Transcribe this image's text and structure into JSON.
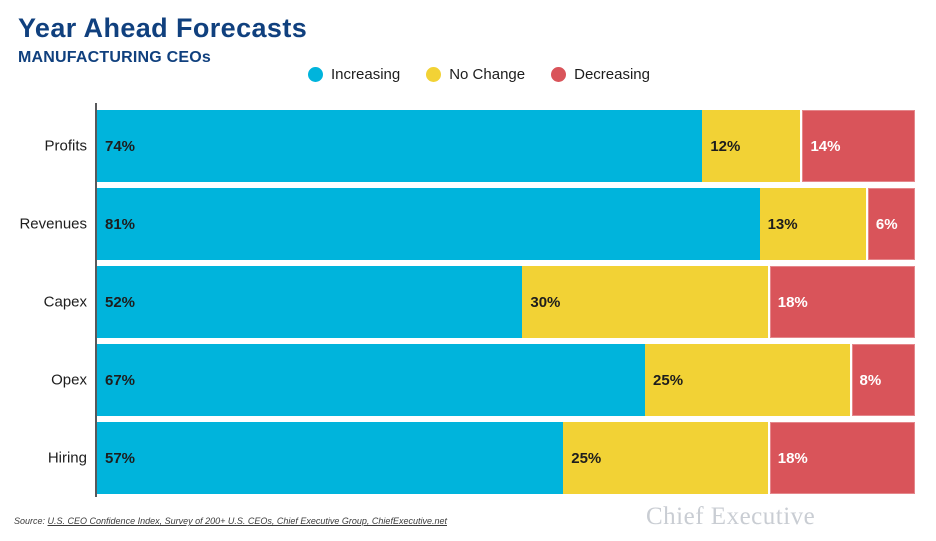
{
  "header": {
    "title": "Year Ahead Forecasts",
    "subtitle": "MANUFACTURING CEOs"
  },
  "legend": [
    {
      "label": "Increasing",
      "color": "#00B4DC"
    },
    {
      "label": "No Change",
      "color": "#F2D235"
    },
    {
      "label": "Decreasing",
      "color": "#D9545A"
    }
  ],
  "chart_data": {
    "type": "bar",
    "orientation": "horizontal",
    "stacked": true,
    "categories": [
      "Profits",
      "Revenues",
      "Capex",
      "Opex",
      "Hiring"
    ],
    "series": [
      {
        "name": "Increasing",
        "color": "#00B4DC",
        "text_color": "#1d1d1d",
        "values": [
          74,
          81,
          52,
          67,
          57
        ]
      },
      {
        "name": "No Change",
        "color": "#F2D235",
        "text_color": "#1d1d1d",
        "values": [
          12,
          13,
          30,
          25,
          25
        ]
      },
      {
        "name": "Decreasing",
        "color": "#D9545A",
        "text_color": "#ffffff",
        "values": [
          14,
          6,
          18,
          8,
          18
        ]
      }
    ],
    "value_suffix": "%",
    "xlim": [
      0,
      100
    ],
    "grid": false,
    "legend_position": "top",
    "title": "Year Ahead Forecasts",
    "subtitle": "MANUFACTURING CEOs"
  },
  "source": {
    "prefix": "Source: ",
    "link": "U.S. CEO Confidence Index, Survey of 200+ U.S. CEOs, Chief Executive Group, ChiefExecutive.net"
  },
  "branding": {
    "logo_text": "Chief Executive"
  }
}
